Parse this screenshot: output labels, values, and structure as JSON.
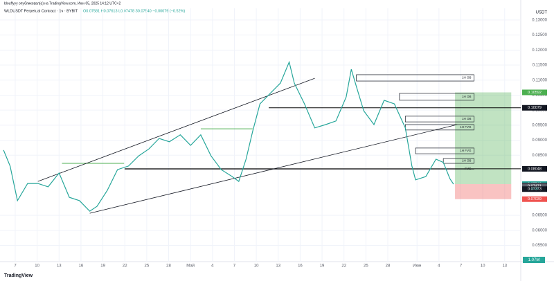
{
  "header": {
    "author_line": "blouffyyy опубликовал(а) на TradingView.com, Июн 05, 2025 14:12 UTC+2",
    "symbol": "WLDUSDT Perpetual Contract · 1ч · BYBIT",
    "ohlc": "О0.07581 Н0.07613 L0.07478 З0.07540 −0.00079 (−0.52%)",
    "currency": "USDT",
    "logo": "TradingView",
    "volume": "1.07M",
    "countdown": "47:28"
  },
  "chart_data": {
    "type": "line",
    "grid": true,
    "color": "#26a69a",
    "x": [
      -1.6,
      -0.7,
      0.3,
      1.7,
      3.1,
      4.5,
      6.0,
      7.4,
      8.8,
      10.2,
      11.2,
      12.6,
      14.0,
      15.5,
      16.9,
      18.3,
      19.7,
      21.1,
      22.6,
      24.0,
      25.4,
      26.8,
      28.2,
      29.7,
      30.6,
      31.6,
      32.5,
      33.5,
      34.9,
      36.3,
      37.5,
      38.2,
      39.6,
      41.0,
      42.5,
      43.9,
      45.3,
      46.0,
      46.7,
      47.7,
      49.1,
      50.5,
      51.9,
      53.4,
      54.3,
      54.8,
      56.2,
      57.6,
      58.6,
      59.5,
      60.0
    ],
    "values": [
      0.0867,
      0.0814,
      0.0699,
      0.0756,
      0.0756,
      0.0745,
      0.0791,
      0.071,
      0.0699,
      0.0664,
      0.068,
      0.0733,
      0.0802,
      0.0814,
      0.0848,
      0.0871,
      0.0906,
      0.0895,
      0.0918,
      0.0883,
      0.0918,
      0.0848,
      0.0802,
      0.0779,
      0.0763,
      0.0837,
      0.0929,
      0.1021,
      0.1056,
      0.109,
      0.116,
      0.109,
      0.1021,
      0.0941,
      0.0952,
      0.0964,
      0.1044,
      0.1136,
      0.1079,
      0.0998,
      0.0952,
      0.1033,
      0.1021,
      0.0941,
      0.0814,
      0.0768,
      0.0779,
      0.0837,
      0.0826,
      0.0772,
      0.0754
    ],
    "xlim": [
      -2.085,
      69.2
    ],
    "ylim": [
      0.0496,
      0.1339
    ],
    "xticks": [
      {
        "value": 0,
        "label": "7"
      },
      {
        "value": 3,
        "label": "10"
      },
      {
        "value": 6,
        "label": "13"
      },
      {
        "value": 9,
        "label": "16"
      },
      {
        "value": 12,
        "label": "19"
      },
      {
        "value": 15,
        "label": "22"
      },
      {
        "value": 18,
        "label": "25"
      },
      {
        "value": 21,
        "label": "28"
      },
      {
        "value": 24,
        "label": "Май"
      },
      {
        "value": 27,
        "label": "4"
      },
      {
        "value": 30,
        "label": "7"
      },
      {
        "value": 33,
        "label": "10"
      },
      {
        "value": 36,
        "label": "13"
      },
      {
        "value": 39,
        "label": "16"
      },
      {
        "value": 42,
        "label": "19"
      },
      {
        "value": 45,
        "label": "22"
      },
      {
        "value": 48,
        "label": "25"
      },
      {
        "value": 51,
        "label": "28"
      },
      {
        "value": 55,
        "label": "Июн"
      },
      {
        "value": 58,
        "label": "4"
      },
      {
        "value": 61,
        "label": "7"
      },
      {
        "value": 64,
        "label": "10"
      },
      {
        "value": 67,
        "label": "13"
      }
    ],
    "yticks": [
      {
        "value": 0.13,
        "label": "0.13000"
      },
      {
        "value": 0.125,
        "label": "0.12500"
      },
      {
        "value": 0.12,
        "label": "0.12000"
      },
      {
        "value": 0.115,
        "label": "0.11500"
      },
      {
        "value": 0.11,
        "label": "0.11000"
      },
      {
        "value": 0.105,
        "label": "0.10500"
      },
      {
        "value": 0.1,
        "label": "0.10000"
      },
      {
        "value": 0.095,
        "label": "0.09500"
      },
      {
        "value": 0.09,
        "label": "0.09000"
      },
      {
        "value": 0.085,
        "label": "0.08500"
      },
      {
        "value": 0.065,
        "label": "0.06500"
      },
      {
        "value": 0.06,
        "label": "0.06000"
      },
      {
        "value": 0.055,
        "label": "0.05500"
      }
    ],
    "zones": [
      {
        "label": "1H OB",
        "x": [
          46.7,
          62.8
        ],
        "y": [
          0.1097,
          0.1118
        ]
      },
      {
        "label": "1H OB",
        "x": [
          52.6,
          62.8
        ],
        "y": [
          0.1033,
          0.1056
        ]
      },
      {
        "label": "1H OB",
        "x": [
          53.4,
          62.8
        ],
        "y": [
          0.0961,
          0.098
        ]
      },
      {
        "label": "1H FVG",
        "x": [
          53.4,
          62.8
        ],
        "y": [
          0.0934,
          0.0952
        ]
      },
      {
        "label": "1H FVG",
        "x": [
          54.8,
          62.8
        ],
        "y": [
          0.0855,
          0.0874
        ]
      },
      {
        "label": "1H OB",
        "x": [
          58.6,
          62.8
        ],
        "y": [
          0.0823,
          0.0839
        ]
      },
      {
        "label": "FVG",
        "x": [
          15.0,
          62.8
        ],
        "y": [
          0.0805,
          0.0805
        ]
      }
    ],
    "levels": [
      {
        "x": [
          34.7,
          69.2
        ],
        "y": 0.10079,
        "color": "#000000"
      },
      {
        "x": [
          15.0,
          69.2
        ],
        "y": 0.08048,
        "color": "#000000"
      },
      {
        "x": [
          6.4,
          14.9
        ],
        "y": 0.0823,
        "color": "#4caf50"
      },
      {
        "x": [
          25.4,
          32.5
        ],
        "y": 0.0938,
        "color": "#4caf50"
      }
    ],
    "trendlines": [
      {
        "x": [
          3.1,
          41.0
        ],
        "y": [
          0.0763,
          0.1106
        ]
      },
      {
        "x": [
          10.2,
          60.5
        ],
        "y": [
          0.0657,
          0.0952
        ]
      }
    ],
    "position": {
      "x": [
        60.2,
        67.9
      ],
      "entry": 0.0754,
      "target": 0.10592,
      "stop": 0.07039
    },
    "price_labels": [
      {
        "value": 0.10592,
        "label": "0.10592",
        "color": "#4caf50"
      },
      {
        "value": 0.10079,
        "label": "0.10079",
        "color": "#131722"
      },
      {
        "value": 0.08048,
        "label": "0.08048",
        "color": "#131722"
      },
      {
        "value": 0.0754,
        "label": "0.07540",
        "color": "#26a69a"
      },
      {
        "value": 0.07494,
        "label": "0.07494",
        "color": "#131722"
      },
      {
        "value": 0.07471,
        "label": "0.07471",
        "color": "#5d606b"
      },
      {
        "value": 0.07373,
        "label": "0.07373",
        "color": "#131722"
      },
      {
        "value": 0.07039,
        "label": "0.07039",
        "color": "#ef5350"
      }
    ]
  }
}
